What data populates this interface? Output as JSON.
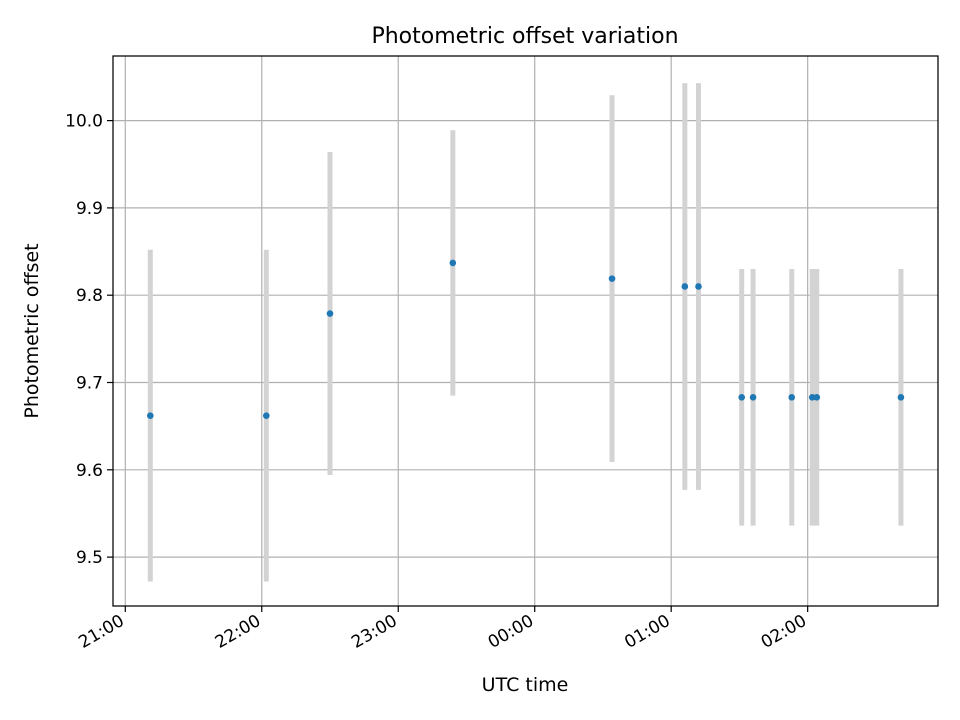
{
  "chart_data": {
    "type": "scatter",
    "title": "Photometric offset variation",
    "xlabel": "UTC time",
    "ylabel": "Photometric offset",
    "x_ticks": [
      "21:00",
      "22:00",
      "23:00",
      "00:00",
      "01:00",
      "02:00"
    ],
    "x_tick_hours": [
      0,
      1,
      2,
      3,
      4,
      5
    ],
    "xlim_hours": [
      -0.09,
      5.955
    ],
    "y_ticks": [
      "9.5",
      "9.6",
      "9.7",
      "9.8",
      "9.9",
      "10.0"
    ],
    "y_tick_values": [
      9.5,
      9.6,
      9.7,
      9.8,
      9.9,
      10.0
    ],
    "ylim": [
      9.444,
      10.074
    ],
    "grid": true,
    "colors": {
      "point": "#1f77b4",
      "errorbar": "#d3d3d3",
      "grid": "#b0b0b0"
    },
    "points": [
      {
        "time": "21:11",
        "y": 9.662,
        "low": 9.472,
        "high": 9.852
      },
      {
        "time": "22:02",
        "y": 9.662,
        "low": 9.472,
        "high": 9.852
      },
      {
        "time": "22:30",
        "y": 9.779,
        "low": 9.594,
        "high": 9.964
      },
      {
        "time": "23:24",
        "y": 9.837,
        "low": 9.685,
        "high": 9.989
      },
      {
        "time": "00:34",
        "y": 9.819,
        "low": 9.609,
        "high": 10.029
      },
      {
        "time": "01:06",
        "y": 9.81,
        "low": 9.577,
        "high": 10.043
      },
      {
        "time": "01:12",
        "y": 9.81,
        "low": 9.577,
        "high": 10.043
      },
      {
        "time": "01:31",
        "y": 9.683,
        "low": 9.536,
        "high": 9.83
      },
      {
        "time": "01:36",
        "y": 9.683,
        "low": 9.536,
        "high": 9.83
      },
      {
        "time": "01:53",
        "y": 9.683,
        "low": 9.536,
        "high": 9.83
      },
      {
        "time": "02:02",
        "y": 9.683,
        "low": 9.536,
        "high": 9.83
      },
      {
        "time": "02:04",
        "y": 9.683,
        "low": 9.536,
        "high": 9.83
      },
      {
        "time": "02:41",
        "y": 9.683,
        "low": 9.536,
        "high": 9.83
      }
    ]
  }
}
